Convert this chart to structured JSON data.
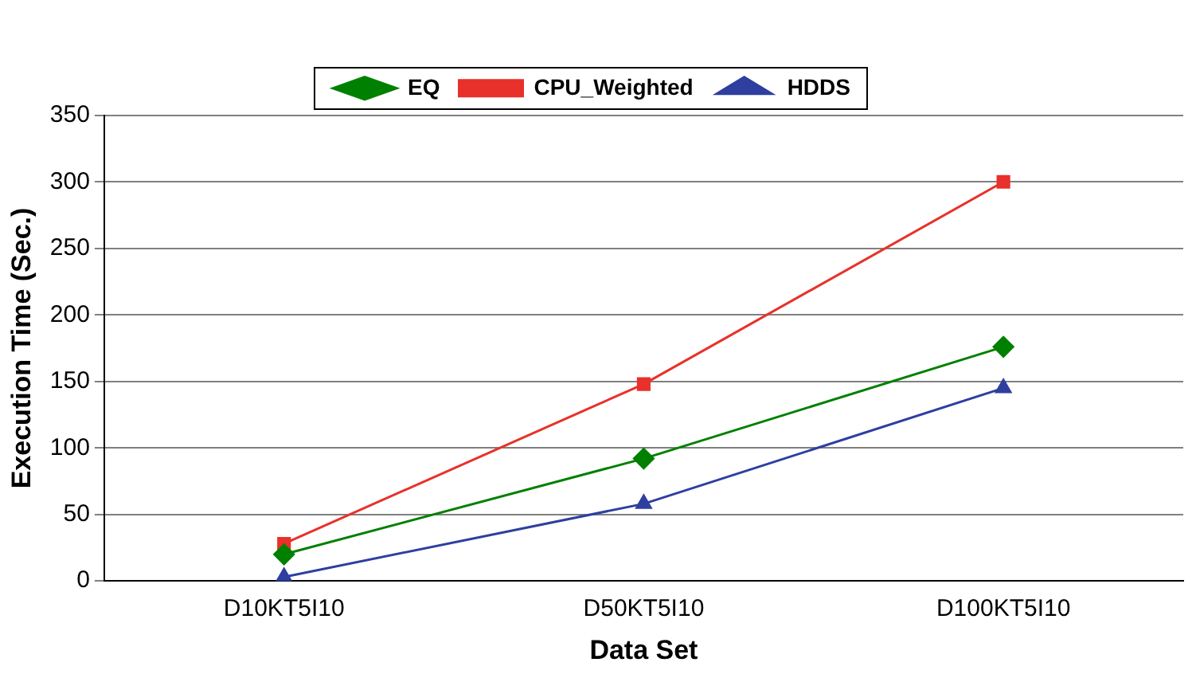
{
  "chart_data": {
    "type": "line",
    "xlabel": "Data Set",
    "ylabel": "Execution Time (Sec.)",
    "categories": [
      "D10KT5I10",
      "D50KT5I10",
      "D100KT5I10"
    ],
    "series": [
      {
        "name": "EQ",
        "color": "#008000",
        "marker": "diamond",
        "values": [
          20,
          92,
          176
        ]
      },
      {
        "name": "CPU_Weighted",
        "color": "#e8312a",
        "marker": "square",
        "values": [
          28,
          148,
          300
        ]
      },
      {
        "name": "HDDS",
        "color": "#2e3fa0",
        "marker": "triangle",
        "values": [
          3,
          58,
          145
        ]
      }
    ],
    "ylim": [
      0,
      350
    ],
    "yticks": [
      0,
      50,
      100,
      150,
      200,
      250,
      300,
      350
    ],
    "grid": "y",
    "legend": "top",
    "line_style": "solid"
  }
}
